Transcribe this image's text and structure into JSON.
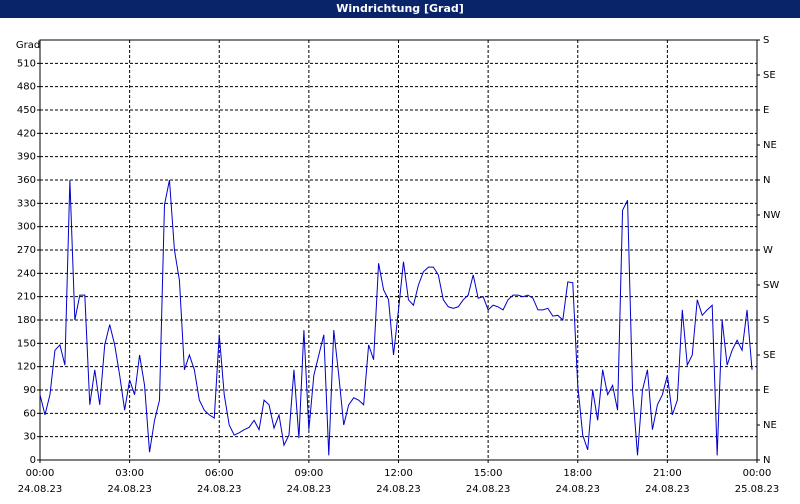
{
  "chart_data": {
    "type": "line",
    "title": "Windrichtung [Grad]",
    "y_label": "Grad",
    "color": "#0000cc",
    "grid": true,
    "xlim": [
      0,
      1440
    ],
    "xticks": [
      {
        "value": 0,
        "label": "00:00"
      },
      {
        "value": 180,
        "label": "03:00"
      },
      {
        "value": 360,
        "label": "06:00"
      },
      {
        "value": 540,
        "label": "09:00"
      },
      {
        "value": 720,
        "label": "12:00"
      },
      {
        "value": 900,
        "label": "15:00"
      },
      {
        "value": 1080,
        "label": "18:00"
      },
      {
        "value": 1260,
        "label": "21:00"
      },
      {
        "value": 1440,
        "label": "00:00"
      }
    ],
    "xtick_dates": [
      "24.08.23",
      "24.08.23",
      "24.08.23",
      "24.08.23",
      "24.08.23",
      "24.08.23",
      "24.08.23",
      "24.08.23",
      "25.08.23"
    ],
    "ylim": [
      0,
      540
    ],
    "yticks": [
      0,
      30,
      60,
      90,
      120,
      150,
      180,
      210,
      240,
      270,
      300,
      330,
      360,
      390,
      420,
      450,
      480,
      510
    ],
    "y2lim": [
      0,
      540
    ],
    "y2ticks": [
      {
        "value": 0,
        "label": "N"
      },
      {
        "value": 45,
        "label": "NE"
      },
      {
        "value": 90,
        "label": "E"
      },
      {
        "value": 135,
        "label": "SE"
      },
      {
        "value": 180,
        "label": "S"
      },
      {
        "value": 225,
        "label": "SW"
      },
      {
        "value": 270,
        "label": "W"
      },
      {
        "value": 315,
        "label": "NW"
      },
      {
        "value": 360,
        "label": "N"
      },
      {
        "value": 405,
        "label": "NE"
      },
      {
        "value": 450,
        "label": "E"
      },
      {
        "value": 495,
        "label": "SE"
      },
      {
        "value": 540,
        "label": "S"
      }
    ],
    "x": [
      0,
      10,
      20,
      30,
      40,
      50,
      60,
      70,
      80,
      90,
      100,
      110,
      120,
      130,
      140,
      150,
      160,
      170,
      180,
      190,
      200,
      210,
      220,
      230,
      240,
      250,
      260,
      270,
      280,
      290,
      300,
      310,
      320,
      330,
      340,
      350,
      360,
      370,
      380,
      390,
      400,
      410,
      420,
      430,
      440,
      450,
      460,
      470,
      480,
      490,
      500,
      510,
      520,
      530,
      540,
      550,
      560,
      570,
      580,
      590,
      600,
      610,
      620,
      630,
      640,
      650,
      660,
      670,
      680,
      690,
      700,
      710,
      720,
      730,
      740,
      750,
      760,
      770,
      780,
      790,
      800,
      810,
      820,
      830,
      840,
      850,
      860,
      870,
      880,
      890,
      900,
      910,
      920,
      930,
      940,
      950,
      960,
      970,
      980,
      990,
      1000,
      1010,
      1020,
      1030,
      1040,
      1050,
      1060,
      1070,
      1080,
      1090,
      1100,
      1110,
      1120,
      1130,
      1140,
      1150,
      1160,
      1170,
      1180,
      1190,
      1200,
      1210,
      1220,
      1230,
      1240,
      1250,
      1260,
      1270,
      1280,
      1290,
      1300,
      1310,
      1320,
      1330,
      1340,
      1350,
      1360,
      1370,
      1380,
      1390,
      1400,
      1410,
      1420,
      1430
    ],
    "values": [
      84,
      58,
      84,
      141,
      148,
      122,
      360,
      180,
      212,
      212,
      71,
      116,
      71,
      148,
      174,
      148,
      109,
      64,
      103,
      84,
      135,
      96,
      10,
      51,
      77,
      328,
      360,
      270,
      231,
      116,
      135,
      116,
      77,
      64,
      58,
      54,
      161,
      84,
      45,
      32,
      35,
      39,
      42,
      51,
      39,
      77,
      71,
      41,
      58,
      19,
      32,
      116,
      28,
      167,
      39,
      109,
      135,
      161,
      6,
      167,
      109,
      45,
      71,
      80,
      77,
      71,
      148,
      129,
      253,
      219,
      206,
      135,
      193,
      255,
      206,
      199,
      225,
      242,
      248,
      248,
      238,
      206,
      197,
      195,
      197,
      206,
      212,
      238,
      208,
      210,
      193,
      199,
      197,
      193,
      206,
      212,
      212,
      210,
      212,
      208,
      193,
      193,
      195,
      185,
      186,
      180,
      229,
      228,
      96,
      32,
      13,
      90,
      51,
      116,
      84,
      96,
      64,
      321,
      334,
      90,
      6,
      90,
      116,
      39,
      71,
      84,
      109,
      58,
      77,
      193,
      122,
      135,
      206,
      186,
      193,
      199,
      6,
      180,
      122,
      141,
      154,
      141,
      193,
      116
    ]
  }
}
